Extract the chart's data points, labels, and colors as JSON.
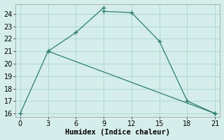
{
  "line1_x": [
    0,
    3,
    6,
    9
  ],
  "line1_y": [
    16,
    21,
    22.5,
    24.5
  ],
  "line2_x": [
    3,
    21
  ],
  "line2_y": [
    21,
    16
  ],
  "line3_x": [
    9,
    12,
    15,
    18,
    21
  ],
  "line3_y": [
    24.2,
    24.1,
    21.8,
    17,
    16
  ],
  "line_color": "#2e7d72",
  "bg_color": "#d5eeeb",
  "grid_color": "#afd8d3",
  "xlabel": "Humidex (Indice chaleur)",
  "xlim": [
    -0.5,
    21.5
  ],
  "ylim": [
    15.7,
    24.8
  ],
  "xticks": [
    0,
    3,
    6,
    9,
    12,
    15,
    18,
    21
  ],
  "yticks": [
    16,
    17,
    18,
    19,
    20,
    21,
    22,
    23,
    24
  ],
  "label_fontsize": 7.5,
  "tick_fontsize": 7
}
